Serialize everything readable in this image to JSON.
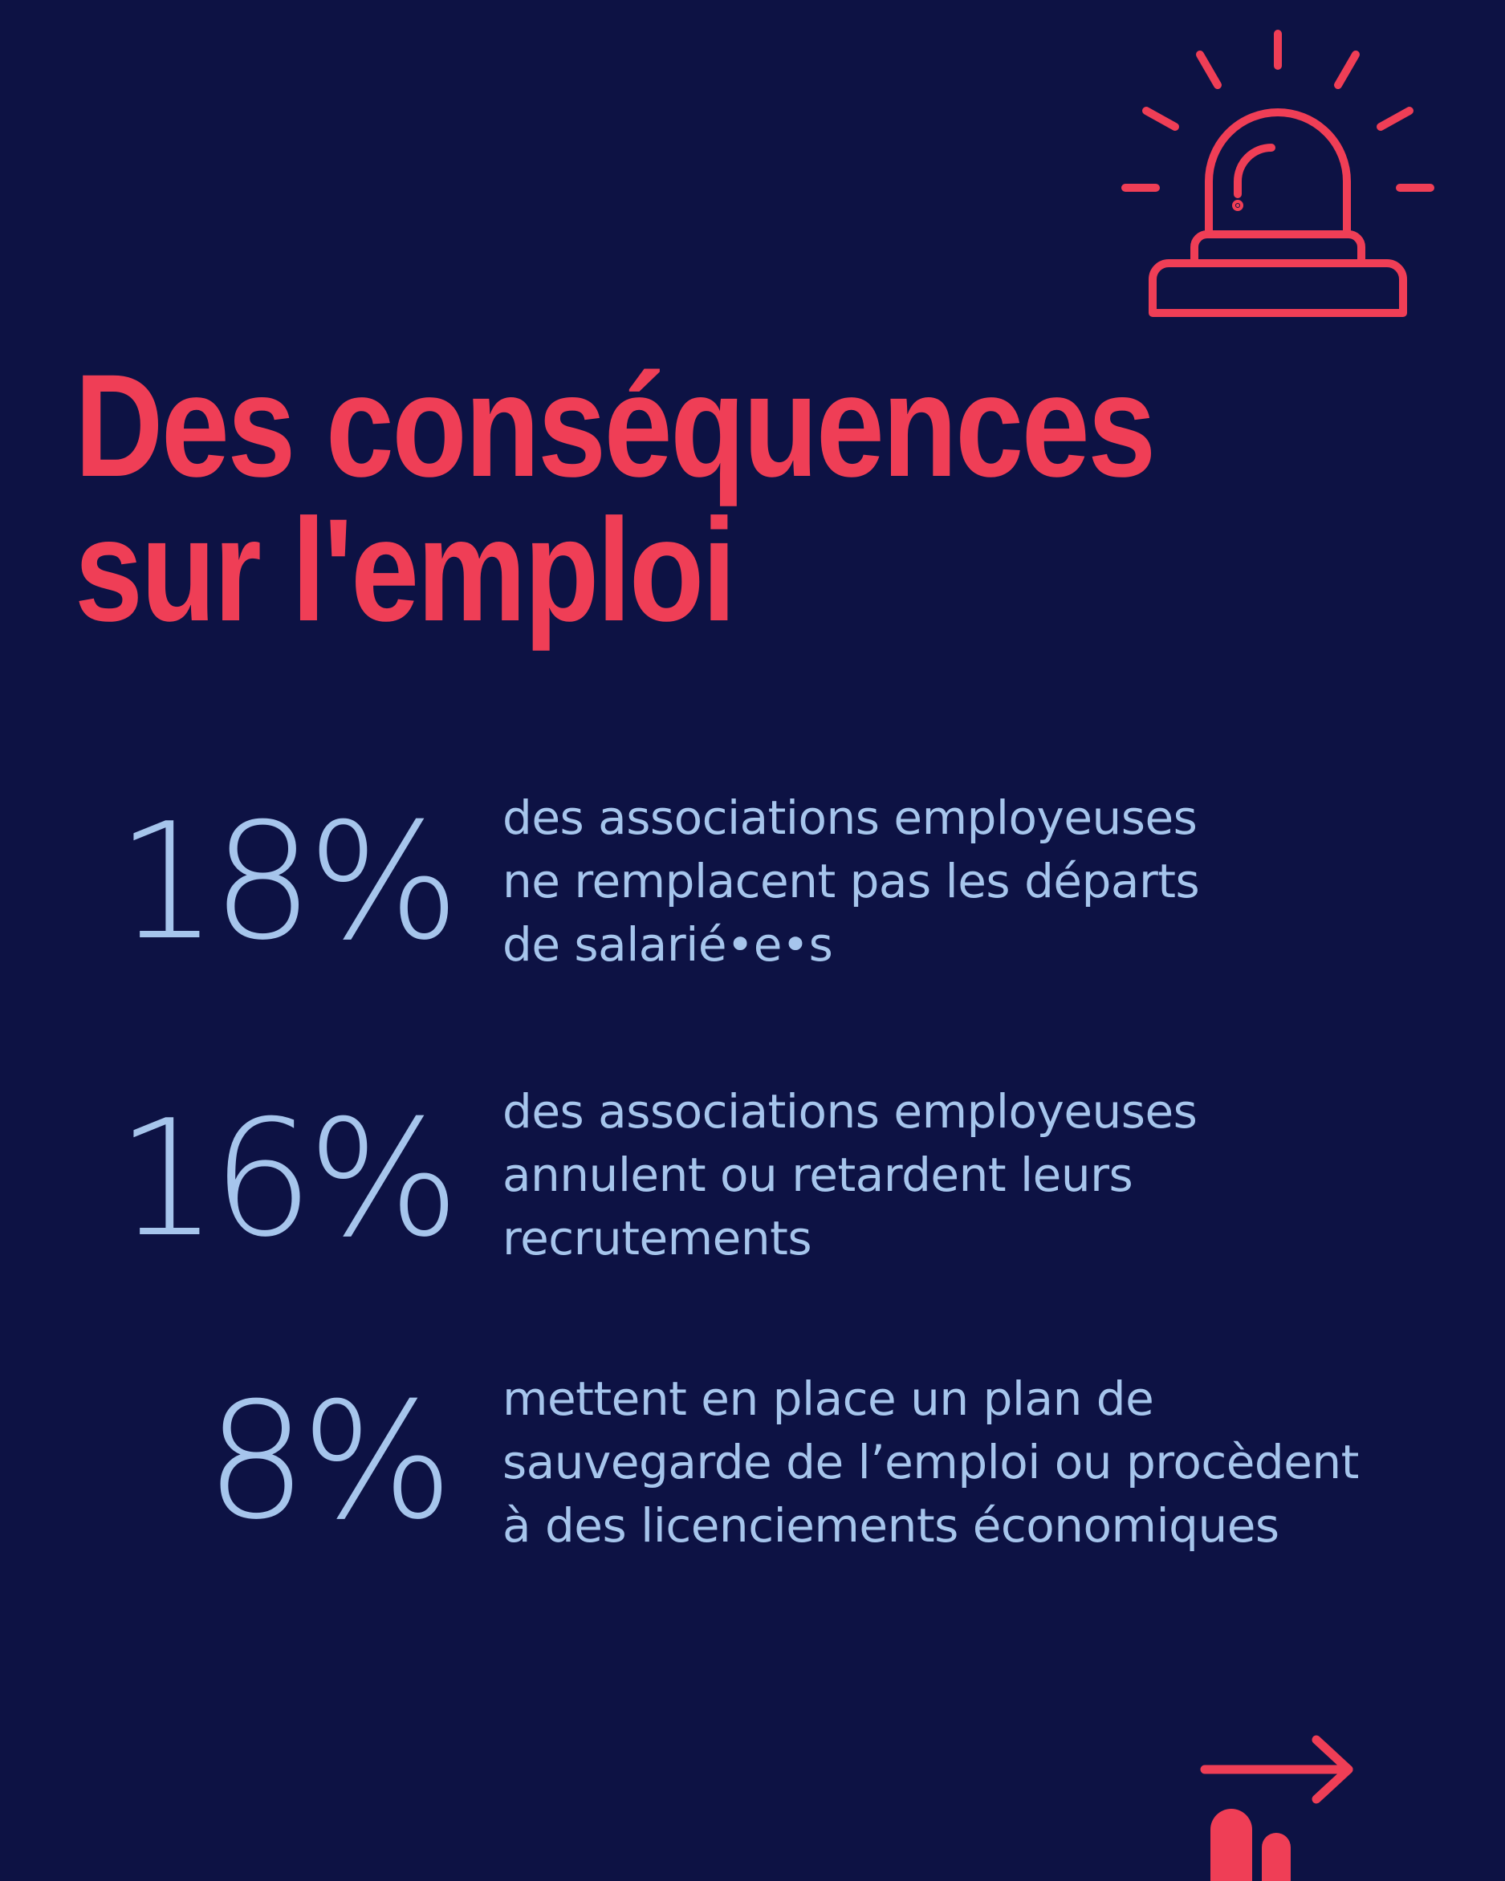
{
  "colors": {
    "background": "#0d1244",
    "accent": "#ef3e56",
    "text": "#a6c5ec"
  },
  "icons": {
    "alarm": "alarm-siren-icon",
    "next": "arrow-right-icon",
    "logo": "bars-logo-icon"
  },
  "title": {
    "line1": "Des conséquences",
    "line2": "sur l'emploi"
  },
  "stats": [
    {
      "value": "18%",
      "lines": [
        "des associations employeuses",
        "ne remplacent pas les départs",
        "de salarié•e•s"
      ]
    },
    {
      "value": "16%",
      "lines": [
        "des associations employeuses",
        "annulent ou retardent leurs",
        "recrutements"
      ]
    },
    {
      "value": "8%",
      "lines": [
        "mettent en place un plan de",
        "sauvegarde de l’emploi ou procèdent",
        "à des licenciements économiques"
      ]
    }
  ]
}
